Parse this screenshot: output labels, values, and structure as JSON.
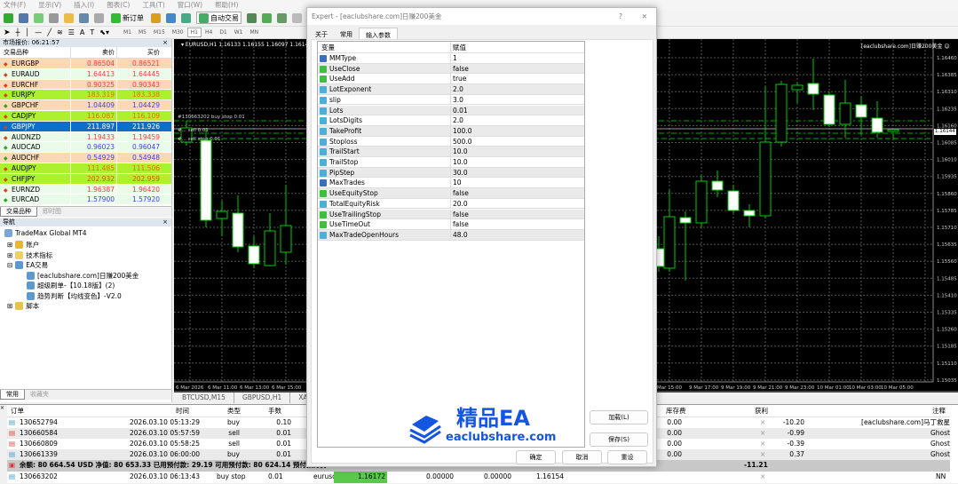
{
  "menu": [
    "文件(F)",
    "显示(V)",
    "插入(I)",
    "图表(C)",
    "工具(T)",
    "窗口(W)",
    "帮助(H)"
  ],
  "toolbar": {
    "new_order": "新订单",
    "auto_trading": "自动交易",
    "timeframes": [
      "M1",
      "M5",
      "M15",
      "M30",
      "H1",
      "H4",
      "D1",
      "W1",
      "MN"
    ],
    "active_timeframe": "H1"
  },
  "market_watch": {
    "title": "市场报价: 06:21:57",
    "columns": [
      "交易品种",
      "卖价",
      "买价"
    ],
    "rows": [
      {
        "symbol": "EURGBP",
        "bid": "0.86504",
        "ask": "0.86521",
        "bg": "#fcd8b4",
        "color": "#f03c3c"
      },
      {
        "symbol": "EURAUD",
        "bid": "1.64413",
        "ask": "1.64445",
        "bg": "#eafbea",
        "color": "#f03c3c"
      },
      {
        "symbol": "EURCHF",
        "bid": "0.90325",
        "ask": "0.90343",
        "bg": "#fcd8b4",
        "color": "#f03c3c"
      },
      {
        "symbol": "EURJPY",
        "bid": "183.319",
        "ask": "183.338",
        "bg": "#adf02e",
        "color": "#e87000"
      },
      {
        "symbol": "GBPCHF",
        "bid": "1.04409",
        "ask": "1.04429",
        "bg": "#fcd8b4",
        "color": "#3c3cf0"
      },
      {
        "symbol": "CADJPY",
        "bid": "116.087",
        "ask": "116.109",
        "bg": "#adf02e",
        "color": "#e87000"
      },
      {
        "symbol": "GBPJPY",
        "bid": "211.897",
        "ask": "211.926",
        "bg": "#0f6fc6",
        "color": "#ffffff"
      },
      {
        "symbol": "AUDNZD",
        "bid": "1.19433",
        "ask": "1.19459",
        "bg": "#eafbea",
        "color": "#f03c3c"
      },
      {
        "symbol": "AUDCAD",
        "bid": "0.96023",
        "ask": "0.96047",
        "bg": "#eafbea",
        "color": "#3c3cf0"
      },
      {
        "symbol": "AUDCHF",
        "bid": "0.54929",
        "ask": "0.54948",
        "bg": "#fcd8b4",
        "color": "#3c3cf0"
      },
      {
        "symbol": "AUDJPY",
        "bid": "111.485",
        "ask": "111.506",
        "bg": "#adf02e",
        "color": "#e87000"
      },
      {
        "symbol": "CHFJPY",
        "bid": "202.932",
        "ask": "202.959",
        "bg": "#adf02e",
        "color": "#e85000"
      },
      {
        "symbol": "EURNZD",
        "bid": "1.96387",
        "ask": "1.96420",
        "bg": "#eafbea",
        "color": "#f03c3c"
      },
      {
        "symbol": "EURCAD",
        "bid": "1.57900",
        "ask": "1.57920",
        "bg": "#eafbea",
        "color": "#3c3cf0"
      }
    ],
    "tabs": [
      "交易品种",
      "即时图"
    ]
  },
  "navigator": {
    "title": "导航",
    "root": "TradeMax Global MT4",
    "items": [
      "账户",
      "技术指标",
      "EA交易",
      "脚本"
    ],
    "experts": [
      "[eaclubshare.com]日赚200美金",
      "超级刷单-【10.18版】(2)",
      "趋势判断【均线变色】-V2.0"
    ],
    "tabs": [
      "常用",
      "收藏夹"
    ]
  },
  "chart": {
    "header": "EURUSD,H1  1.16133 1.16155 1.16097 1.16144",
    "expert_label": "[eaclubshare.com]日赚200美金 ☺",
    "current_price": "1.16144",
    "price_ticks": [
      "1.16460",
      "1.16385",
      "1.16310",
      "1.16235",
      "1.16160",
      "1.16085",
      "1.16010",
      "1.15935",
      "1.15860",
      "1.15785",
      "1.15710",
      "1.15635",
      "1.15560",
      "1.15485",
      "1.15410",
      "1.15335",
      "1.15260",
      "1.15185",
      "1.15110",
      "1.15035"
    ],
    "time_ticks_left": [
      "6 Mar 2026",
      "6 Mar 11:00",
      "6 Mar 13:00",
      "6 Mar 15:00"
    ],
    "time_ticks_right": [
      "Mar 15:00",
      "9 Mar 17:00",
      "9 Mar 19:00",
      "9 Mar 21:00",
      "9 Mar 23:00",
      "10 Mar 01:00",
      "10 Mar 03:00",
      "10 Mar 05:00"
    ],
    "order_labels": [
      "#130663202 buy stop 0.01",
      "#... sell 0.01",
      "#... sell stop 0.01"
    ],
    "candle_bull_color": "#00c000",
    "tabs": [
      "BTCUSD,M15",
      "GBPUSD,H1",
      "XAUUSD,H"
    ]
  },
  "dialog": {
    "title": "Expert - [eaclubshare.com]日赚200美金",
    "help": "?",
    "close": "✕",
    "tabs": [
      "关于",
      "常用",
      "输入参数"
    ],
    "active_tab": "输入参数",
    "columns": [
      "变量",
      "赋值"
    ],
    "params": [
      {
        "name": "MMType",
        "value": "1",
        "type": "int"
      },
      {
        "name": "UseClose",
        "value": "false",
        "type": "bool"
      },
      {
        "name": "UseAdd",
        "value": "true",
        "type": "bool"
      },
      {
        "name": "LotExponent",
        "value": "2.0",
        "type": "double"
      },
      {
        "name": "slip",
        "value": "3.0",
        "type": "double"
      },
      {
        "name": "Lots",
        "value": "0.01",
        "type": "double"
      },
      {
        "name": "LotsDigits",
        "value": "2.0",
        "type": "double"
      },
      {
        "name": "TakeProfit",
        "value": "100.0",
        "type": "double"
      },
      {
        "name": "Stoploss",
        "value": "500.0",
        "type": "double"
      },
      {
        "name": "TrailStart",
        "value": "10.0",
        "type": "double"
      },
      {
        "name": "TrailStop",
        "value": "10.0",
        "type": "double"
      },
      {
        "name": "PipStep",
        "value": "30.0",
        "type": "double"
      },
      {
        "name": "MaxTrades",
        "value": "10",
        "type": "int"
      },
      {
        "name": "UseEquityStop",
        "value": "false",
        "type": "bool"
      },
      {
        "name": "TotalEquityRisk",
        "value": "20.0",
        "type": "double"
      },
      {
        "name": "UseTrailingStop",
        "value": "false",
        "type": "bool"
      },
      {
        "name": "UseTimeOut",
        "value": "false",
        "type": "bool"
      },
      {
        "name": "MaxTradeOpenHours",
        "value": "48.0",
        "type": "double"
      }
    ],
    "buttons": {
      "load": "加载(L)",
      "save": "保存(S)",
      "ok": "确定",
      "cancel": "取消",
      "reset": "重设"
    }
  },
  "watermark": {
    "title": "精品EA",
    "url": "eaclubshare.com",
    "color": "#1456e0"
  },
  "terminal": {
    "columns": {
      "order": "订单",
      "time": "时间",
      "type": "类型",
      "size": "手数",
      "swap": "库存费",
      "profit": "获利",
      "comment": "注释"
    },
    "rows": [
      {
        "order": "130652794",
        "time": "2026.03.10 05:13:29",
        "type": "buy",
        "size": "0.10",
        "swap": "0.00",
        "profit": "-10.20",
        "comment": "[eaclubshare.com]马丁救星"
      },
      {
        "order": "130660584",
        "time": "2026.03.10 05:57:59",
        "type": "sell",
        "size": "0.01",
        "swap": "0.00",
        "profit": "-0.99",
        "comment": "Ghost"
      },
      {
        "order": "130660809",
        "time": "2026.03.10 05:58:25",
        "type": "sell",
        "size": "0.01",
        "swap": "0.00",
        "profit": "-0.39",
        "comment": "Ghost"
      },
      {
        "order": "130661339",
        "time": "2026.03.10 06:00:00",
        "type": "buy",
        "size": "0.01",
        "swap": "0.00",
        "profit": "0.37",
        "comment": "Ghost"
      }
    ],
    "summary": "余额: 80 664.54 USD  净值: 80 653.33  已用预付款: 29.19  可用预付款: 80 624.14  预付款比例: 276288.5",
    "summary_profit": "-11.21",
    "pending": {
      "order": "130663202",
      "time": "2026.03.10 06:13:43",
      "type": "buy stop",
      "size": "0.01",
      "symbol": "eurusd",
      "price": "1.16172",
      "sl": "0.00000",
      "tp": "0.00000",
      "current": "1.16154",
      "comment": "NN"
    }
  }
}
